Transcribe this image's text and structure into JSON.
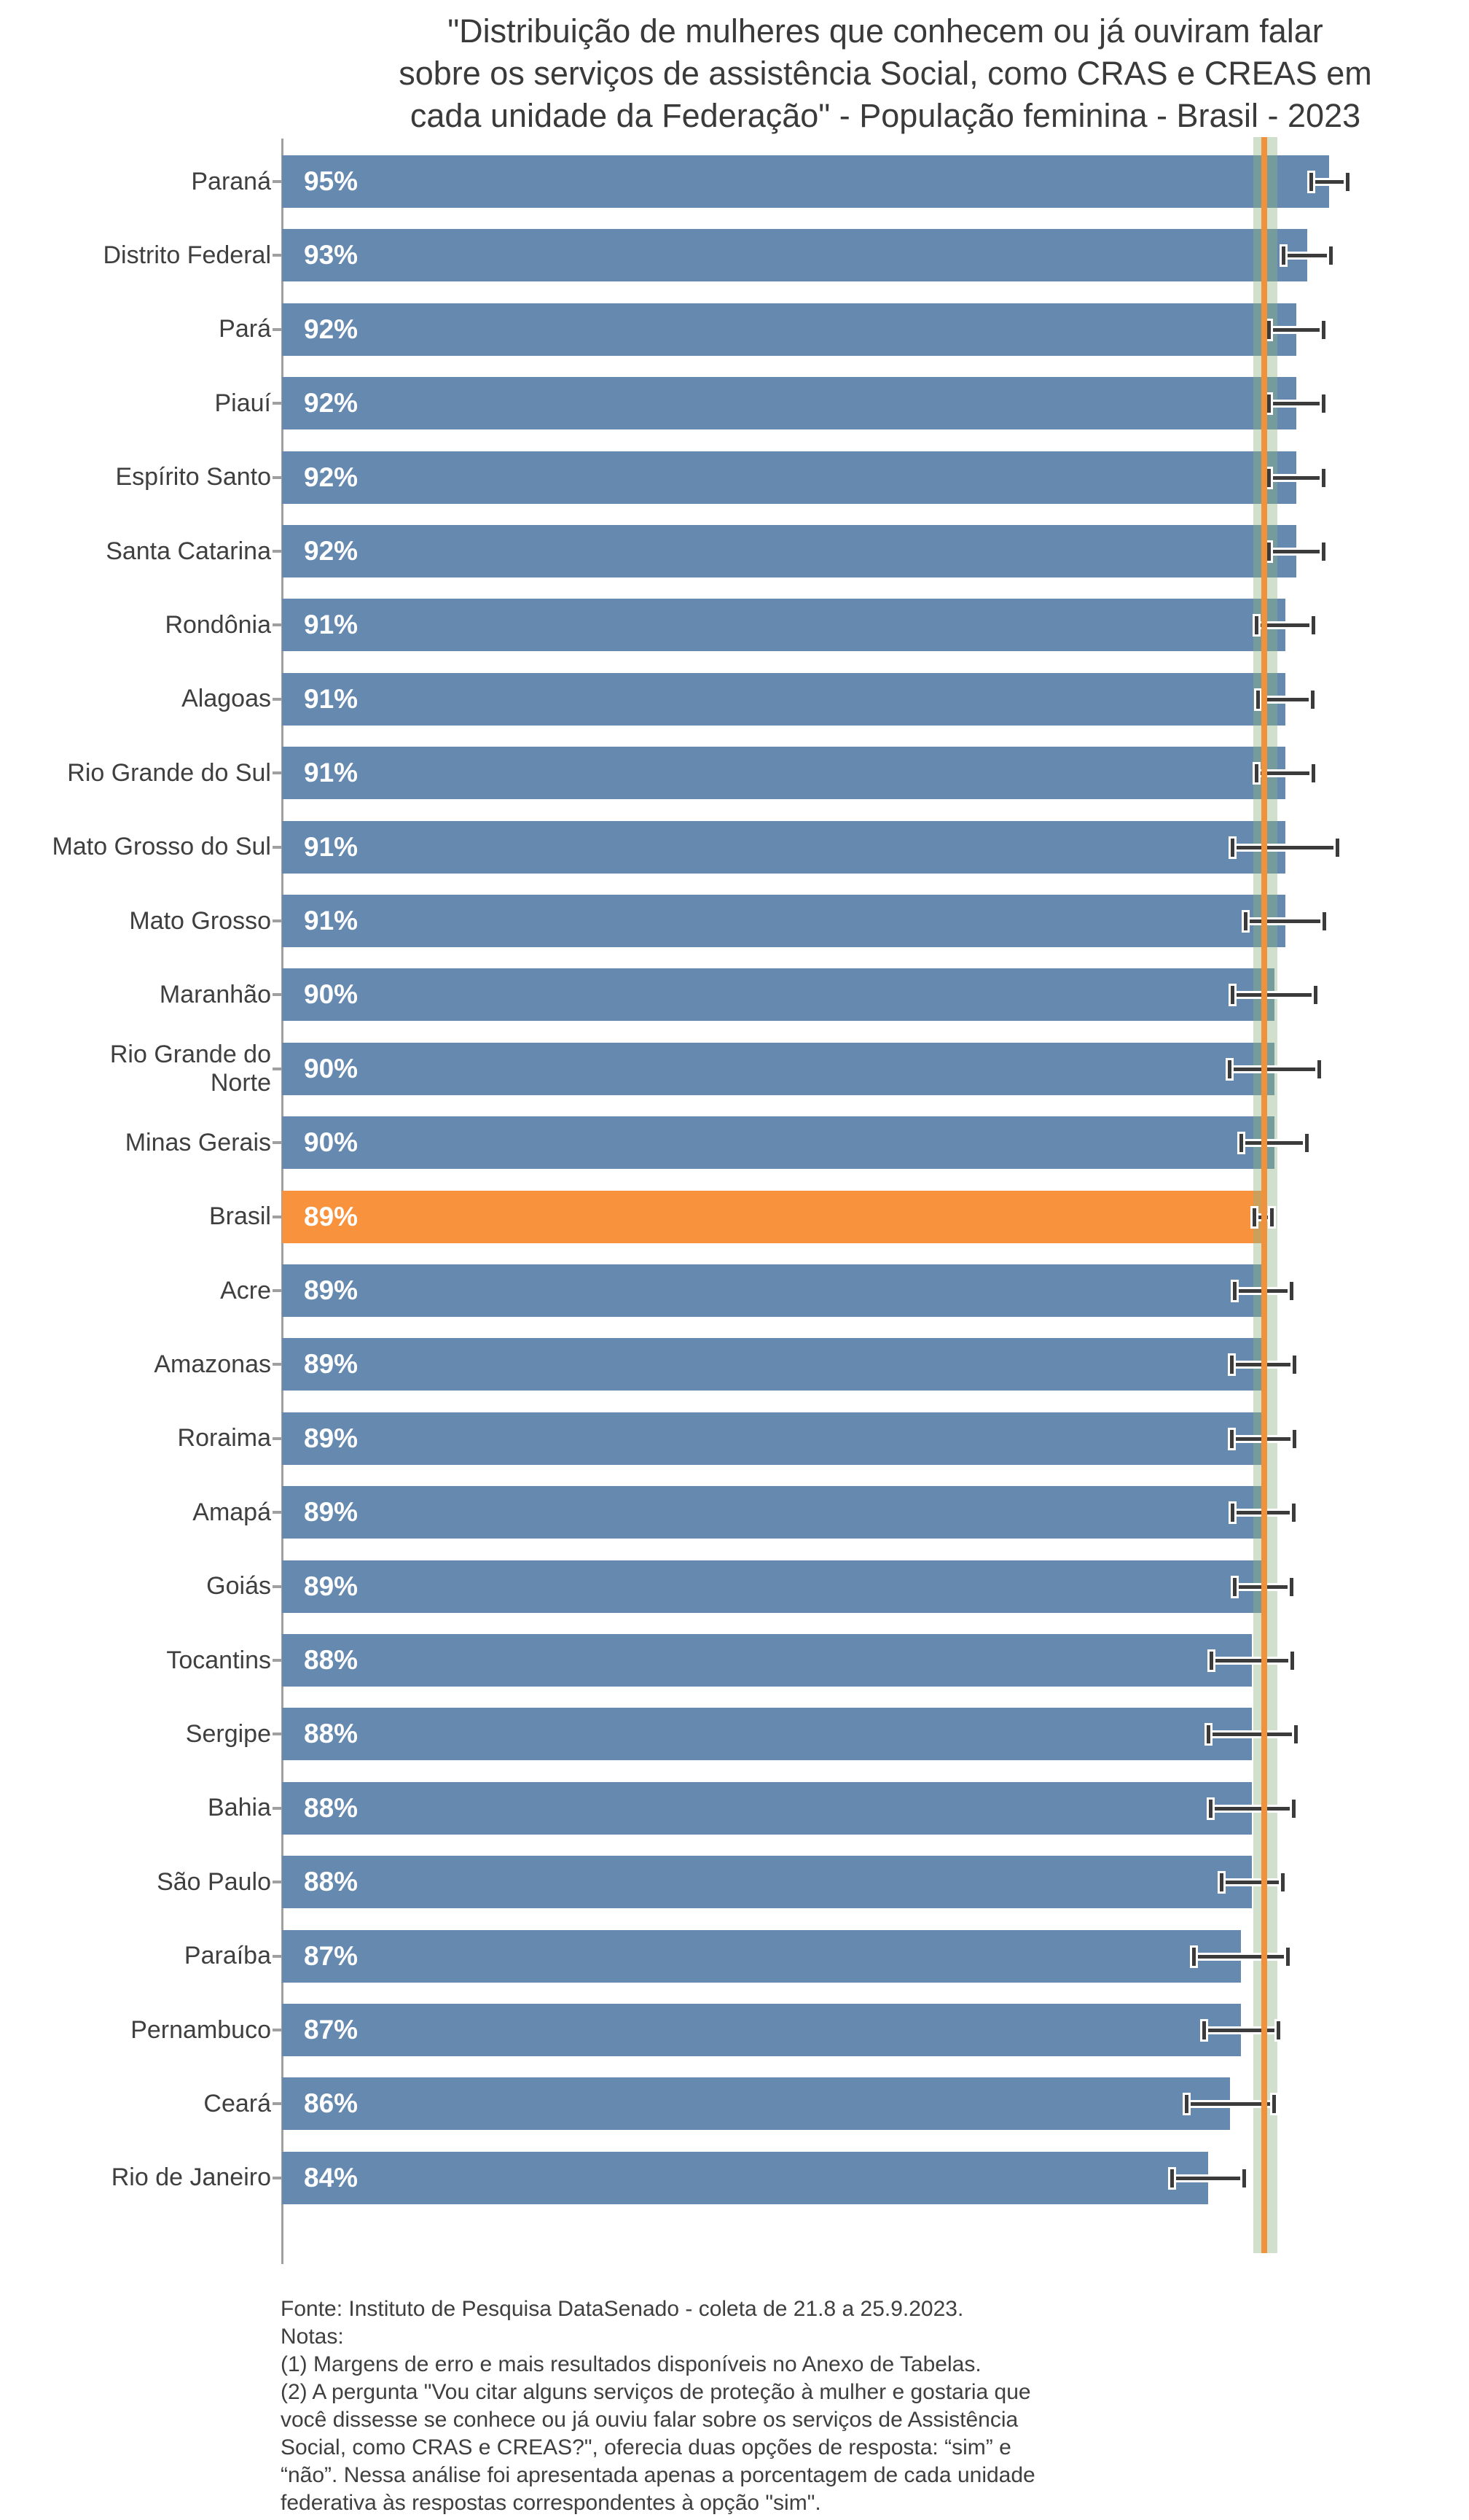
{
  "title": "\"Distribuição de mulheres que conhecem ou já ouviram falar\nsobre os serviços de assistência Social, como CRAS e CREAS em\ncada unidade da Federação\" - População feminina - Brasil - 2023",
  "chart_data": {
    "type": "bar",
    "orientation": "horizontal",
    "unit": "%",
    "categories": [
      "Paraná",
      "Distrito Federal",
      "Pará",
      "Piauí",
      "Espírito Santo",
      "Santa Catarina",
      "Rondônia",
      "Alagoas",
      "Rio Grande do Sul",
      "Mato Grosso do Sul",
      "Mato Grosso",
      "Maranhão",
      "Rio Grande do\nNorte",
      "Minas Gerais",
      "Brasil",
      "Acre",
      "Amazonas",
      "Roraima",
      "Amapá",
      "Goiás",
      "Tocantins",
      "Sergipe",
      "Bahia",
      "São Paulo",
      "Paraíba",
      "Pernambuco",
      "Ceará",
      "Rio de Janeiro"
    ],
    "values": [
      95,
      93,
      92,
      92,
      92,
      92,
      91,
      91,
      91,
      91,
      91,
      90,
      90,
      90,
      89,
      89,
      89,
      89,
      89,
      89,
      88,
      88,
      88,
      88,
      87,
      87,
      86,
      84
    ],
    "value_labels": [
      "95%",
      "93%",
      "92%",
      "92%",
      "92%",
      "92%",
      "91%",
      "91%",
      "91%",
      "91%",
      "91%",
      "90%",
      "90%",
      "90%",
      "89%",
      "89%",
      "89%",
      "89%",
      "89%",
      "89%",
      "88%",
      "88%",
      "88%",
      "88%",
      "87%",
      "87%",
      "86%",
      "84%"
    ],
    "margins_of_error": [
      1.7,
      2.2,
      2.5,
      2.5,
      2.5,
      2.5,
      2.6,
      2.5,
      2.6,
      4.8,
      3.6,
      3.8,
      4.1,
      3.0,
      0.8,
      2.6,
      2.9,
      2.9,
      2.8,
      2.6,
      3.7,
      4.0,
      3.8,
      2.8,
      4.3,
      3.4,
      4.0,
      3.3
    ],
    "highlight_category": "Brasil",
    "reference": {
      "value": 89.1,
      "band_low": 88.1,
      "band_high": 90.3,
      "meaning": "Brasil: valor e intervalo de confiança"
    },
    "xlim": [
      0,
      107
    ],
    "grid": false,
    "legend": false,
    "colors": {
      "bar": "#6589af",
      "highlight_bar": "#f8923d",
      "reference_line": "#f0913c",
      "reference_band": "rgba(143,181,133,0.42)",
      "error_bar": "#3b3b3b",
      "axis": "#a0a0a0",
      "text": "#3f3f3f",
      "value_label": "#ffffff"
    }
  },
  "footer": {
    "text": "Fonte: Instituto de Pesquisa DataSenado - coleta de 21.8 a 25.9.2023.\nNotas:\n(1) Margens de erro e mais resultados disponíveis no Anexo de Tabelas.\n(2) A pergunta \"Vou citar alguns serviços de proteção à mulher e gostaria que\nvocê dissesse se conhece ou já ouviu falar sobre os serviços de Assistência\nSocial, como CRAS e CREAS?\", oferecia duas opções de resposta: “sim” e\n“não”. Nessa análise foi apresentada apenas a porcentagem de cada unidade\nfederativa às respostas correspondentes à opção \"sim\"."
  }
}
